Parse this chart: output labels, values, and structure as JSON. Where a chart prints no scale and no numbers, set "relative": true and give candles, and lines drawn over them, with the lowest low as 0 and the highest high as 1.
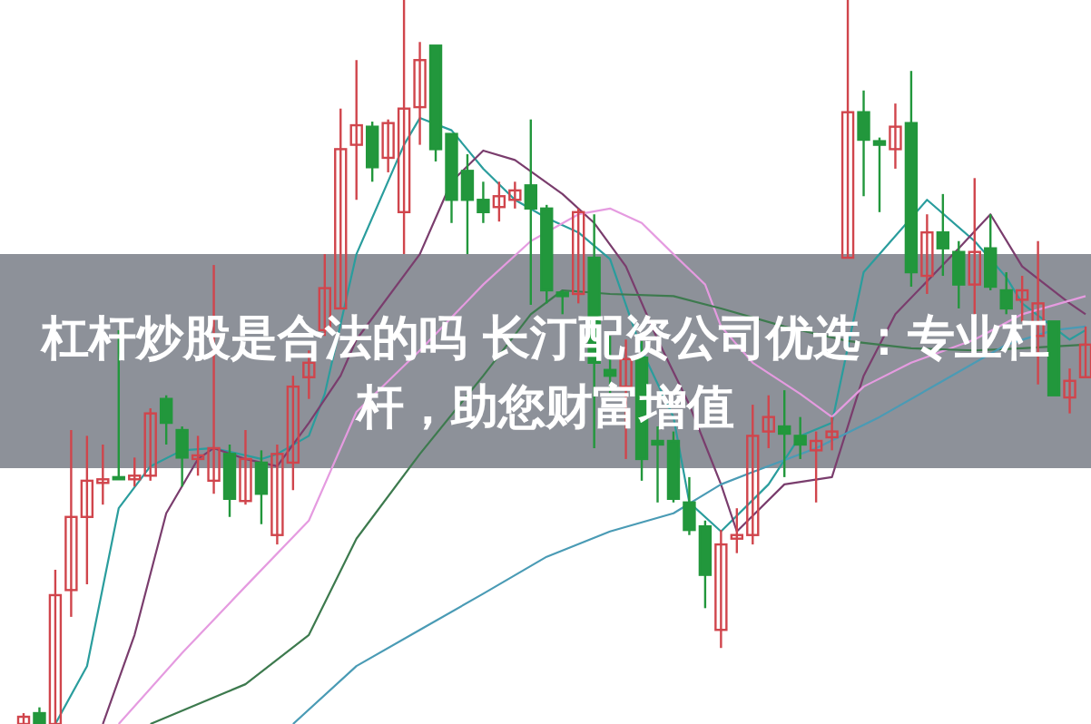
{
  "chart_data": {
    "type": "candlestick",
    "title": "杠杆炒股是合法的吗 长汀配资公司优选：专业杠杆，助您财富增值",
    "relative": true,
    "categories": [
      null,
      null,
      null,
      null,
      null,
      null,
      null,
      null,
      null,
      null,
      null,
      null,
      null,
      null,
      null,
      null,
      null,
      null,
      null,
      null,
      null,
      null,
      null,
      null,
      null,
      null,
      null,
      null,
      null,
      null,
      null,
      null,
      null,
      null,
      null,
      null,
      null,
      null,
      null,
      null,
      null,
      null,
      null,
      null,
      null,
      null,
      null,
      null,
      null,
      null,
      null,
      null,
      null,
      null,
      null,
      null,
      null,
      null,
      null,
      null,
      null,
      null,
      null,
      null,
      null,
      null,
      null,
      null
    ],
    "ohlc": [
      [
        0,
        0.015,
        0,
        0.01
      ],
      [
        0.015,
        0.023,
        0,
        0
      ],
      [
        0,
        0.213,
        0,
        0.178
      ],
      [
        0.185,
        0.406,
        0.148,
        0.286
      ],
      [
        0.286,
        0.398,
        0.193,
        0.336
      ],
      [
        0.333,
        0.386,
        0.303,
        0.338
      ],
      [
        0.341,
        0.544,
        0.338,
        0.338
      ],
      [
        0.338,
        0.368,
        0.328,
        0.343
      ],
      [
        0.343,
        0.436,
        0.336,
        0.429
      ],
      [
        0.449,
        0.454,
        0.386,
        0.416
      ],
      [
        0.406,
        0.411,
        0.328,
        0.368
      ],
      [
        0.366,
        0.398,
        0.343,
        0.371
      ],
      [
        0.336,
        0.634,
        0.318,
        0.381
      ],
      [
        0.373,
        0.386,
        0.286,
        0.311
      ],
      [
        0.308,
        0.406,
        0.303,
        0.366
      ],
      [
        0.361,
        0.378,
        0.276,
        0.318
      ],
      [
        0.261,
        0.386,
        0.248,
        0.373
      ],
      [
        0.361,
        0.481,
        0.323,
        0.466
      ],
      [
        0.479,
        0.516,
        0.449,
        0.499
      ],
      [
        0.544,
        0.649,
        0.536,
        0.602
      ],
      [
        0.574,
        0.85,
        0.574,
        0.794
      ],
      [
        0.8,
        0.917,
        0.724,
        0.827
      ],
      [
        0.825,
        0.832,
        0.749,
        0.769
      ],
      [
        0.782,
        0.835,
        0.762,
        0.83
      ],
      [
        0.707,
        1,
        0.649,
        0.85
      ],
      [
        0.852,
        0.942,
        0.8,
        0.917
      ],
      [
        0.937,
        0.937,
        0.777,
        0.794
      ],
      [
        0.815,
        0.815,
        0.692,
        0.724
      ],
      [
        0.764,
        0.787,
        0.649,
        0.724
      ],
      [
        0.724,
        0.749,
        0.692,
        0.707
      ],
      [
        0.714,
        0.749,
        0.694,
        0.729
      ],
      [
        0.724,
        0.749,
        0.712,
        0.737
      ],
      [
        0.744,
        0.835,
        0.579,
        0.712
      ],
      [
        0.712,
        0.717,
        0.581,
        0.599
      ],
      [
        0.596,
        0.599,
        0.566,
        0.591
      ],
      [
        0.594,
        0.712,
        0.581,
        0.707
      ],
      [
        0.644,
        0.704,
        0.381,
        0.499
      ],
      [
        0.489,
        0.536,
        0.456,
        0.481
      ],
      [
        0.466,
        0.531,
        0.366,
        0.504
      ],
      [
        0.506,
        0.529,
        0.336,
        0.366
      ],
      [
        0.391,
        0.411,
        0.306,
        0.386
      ],
      [
        0.391,
        0.404,
        0.306,
        0.311
      ],
      [
        0.306,
        0.341,
        0.261,
        0.268
      ],
      [
        0.273,
        0.281,
        0.16,
        0.206
      ],
      [
        0.13,
        0.268,
        0.105,
        0.248
      ],
      [
        0.256,
        0.298,
        0.236,
        0.261
      ],
      [
        0.261,
        0.441,
        0.248,
        0.398
      ],
      [
        0.404,
        0.454,
        0.381,
        0.424
      ],
      [
        0.411,
        0.461,
        0.341,
        0.401
      ],
      [
        0.398,
        0.424,
        0.366,
        0.386
      ],
      [
        0.378,
        0.404,
        0.306,
        0.391
      ],
      [
        0.396,
        0.424,
        0.378,
        0.404
      ],
      [
        0.644,
        1,
        0.644,
        0.845
      ],
      [
        0.845,
        0.875,
        0.729,
        0.807
      ],
      [
        0.805,
        0.81,
        0.707,
        0.8
      ],
      [
        0.794,
        0.857,
        0.767,
        0.825
      ],
      [
        0.83,
        0.902,
        0.604,
        0.624
      ],
      [
        0.619,
        0.704,
        0.594,
        0.679
      ],
      [
        0.679,
        0.732,
        0.619,
        0.657
      ],
      [
        0.652,
        0.667,
        0.574,
        0.607
      ],
      [
        0.607,
        0.754,
        0.566,
        0.652
      ],
      [
        0.657,
        0.704,
        0.599,
        0.604
      ],
      [
        0.599,
        0.624,
        0.566,
        0.574
      ],
      [
        0.586,
        0.619,
        0.556,
        0.599
      ],
      [
        0.536,
        0.667,
        0.469,
        0.581
      ],
      [
        0.556,
        0.556,
        0.454,
        0.454
      ],
      [
        0.451,
        0.491,
        0.429,
        0.474
      ],
      [
        0.479,
        0.549,
        0.479,
        0.524
      ]
    ],
    "colors": [
      "#d0454c",
      "#22973c",
      "#d0454c",
      "#d0454c",
      "#d0454c",
      "#d0454c",
      "#22973c",
      "#d0454c",
      "#d0454c",
      "#22973c",
      "#22973c",
      "#d0454c",
      "#d0454c",
      "#22973c",
      "#d0454c",
      "#22973c",
      "#d0454c",
      "#d0454c",
      "#d0454c",
      "#d0454c",
      "#d0454c",
      "#d0454c",
      "#22973c",
      "#d0454c",
      "#d0454c",
      "#d0454c",
      "#22973c",
      "#22973c",
      "#22973c",
      "#22973c",
      "#d0454c",
      "#d0454c",
      "#22973c",
      "#22973c",
      "#22973c",
      "#d0454c",
      "#22973c",
      "#22973c",
      "#d0454c",
      "#22973c",
      "#22973c",
      "#22973c",
      "#22973c",
      "#22973c",
      "#d0454c",
      "#d0454c",
      "#d0454c",
      "#d0454c",
      "#22973c",
      "#22973c",
      "#d0454c",
      "#d0454c",
      "#d0454c",
      "#22973c",
      "#22973c",
      "#d0454c",
      "#22973c",
      "#d0454c",
      "#22973c",
      "#22973c",
      "#d0454c",
      "#22973c",
      "#22973c",
      "#d0454c",
      "#d0454c",
      "#22973c",
      "#d0454c",
      "#d0454c"
    ],
    "series": [
      {
        "type": "line",
        "color": "#2a9d9d",
        "values": [
          null,
          null,
          0,
          null,
          0.08,
          null,
          0.298,
          null,
          0.356,
          null,
          0.378,
          null,
          0.381,
          null,
          null,
          0.366,
          0.373,
          null,
          0.398,
          0.456,
          null,
          0.649,
          null,
          null,
          0.8,
          0.837,
          null,
          0.82,
          null,
          0.767,
          null,
          0.724,
          null,
          0.699,
          null,
          0.679,
          null,
          0.642,
          null,
          0.516,
          null,
          0.424,
          0.306,
          null,
          0.266,
          null,
          null,
          0.331,
          null,
          0.398,
          null,
          0.416,
          null,
          0.624,
          null,
          null,
          null,
          0.724,
          null,
          null,
          0.667,
          null,
          0.617,
          0.581,
          null,
          null,
          0.531,
          0.544
        ]
      },
      {
        "type": "line",
        "color": "#7a3d6d",
        "values": [
          null,
          null,
          null,
          null,
          null,
          0,
          null,
          0.123,
          null,
          0.291,
          null,
          0.366,
          0.381,
          null,
          0.366,
          null,
          0.356,
          null,
          0.416,
          null,
          0.481,
          0.531,
          null,
          null,
          null,
          0.649,
          null,
          0.749,
          null,
          0.792,
          null,
          0.779,
          null,
          null,
          0.732,
          null,
          0.692,
          null,
          0.632,
          null,
          0.531,
          null,
          0.441,
          null,
          0.331,
          0.266,
          null,
          null,
          0.331,
          null,
          null,
          0.341,
          null,
          0.481,
          null,
          0.566,
          null,
          null,
          null,
          0.657,
          null,
          0.704,
          null,
          0.632,
          null,
          null,
          0.581,
          0.566
        ]
      },
      {
        "type": "line",
        "color": "#e59be0",
        "values": [
          null,
          null,
          null,
          null,
          null,
          null,
          0,
          null,
          null,
          null,
          0.098,
          null,
          null,
          null,
          0.19,
          null,
          null,
          null,
          0.281,
          null,
          null,
          0.431,
          null,
          null,
          null,
          0.516,
          null,
          null,
          null,
          0.607,
          null,
          null,
          0.667,
          null,
          null,
          0.704,
          null,
          0.712,
          null,
          0.692,
          null,
          0.649,
          null,
          0.607,
          0.549,
          null,
          0.499,
          null,
          null,
          0.456,
          null,
          0.424,
          null,
          0.466,
          null,
          null,
          0.499,
          null,
          null,
          null,
          0.531,
          null,
          null,
          0.566,
          null,
          null,
          null,
          0.591
        ]
      },
      {
        "type": "line",
        "color": "#3d7a4e",
        "values": [
          null,
          null,
          null,
          null,
          null,
          null,
          null,
          null,
          0,
          null,
          null,
          null,
          null,
          null,
          0.055,
          null,
          null,
          null,
          0.123,
          null,
          null,
          0.256,
          null,
          null,
          null,
          0.373,
          null,
          null,
          null,
          0.481,
          null,
          null,
          0.566,
          null,
          0.599,
          null,
          null,
          0.594,
          null,
          null,
          null,
          0.591,
          null,
          null,
          0.574,
          null,
          null,
          null,
          0.549,
          null,
          null,
          null,
          0.529,
          null,
          null,
          null,
          0.519,
          null,
          null,
          null,
          0.516,
          null,
          null,
          0.519,
          null,
          null,
          null,
          0.524
        ]
      },
      {
        "type": "line",
        "color": "#4a9bb5",
        "values": [
          null,
          null,
          null,
          null,
          null,
          null,
          null,
          null,
          null,
          null,
          null,
          null,
          null,
          null,
          null,
          null,
          null,
          0,
          null,
          null,
          null,
          0.08,
          null,
          null,
          null,
          0.13,
          null,
          null,
          null,
          0.18,
          null,
          null,
          null,
          0.231,
          null,
          null,
          null,
          0.266,
          null,
          null,
          null,
          0.291,
          null,
          null,
          0.331,
          null,
          0.348,
          null,
          null,
          null,
          0.381,
          null,
          null,
          null,
          0.424,
          null,
          null,
          null,
          0.474,
          null,
          null,
          null,
          0.524,
          null,
          null,
          0.544,
          null,
          0.549
        ]
      }
    ]
  }
}
